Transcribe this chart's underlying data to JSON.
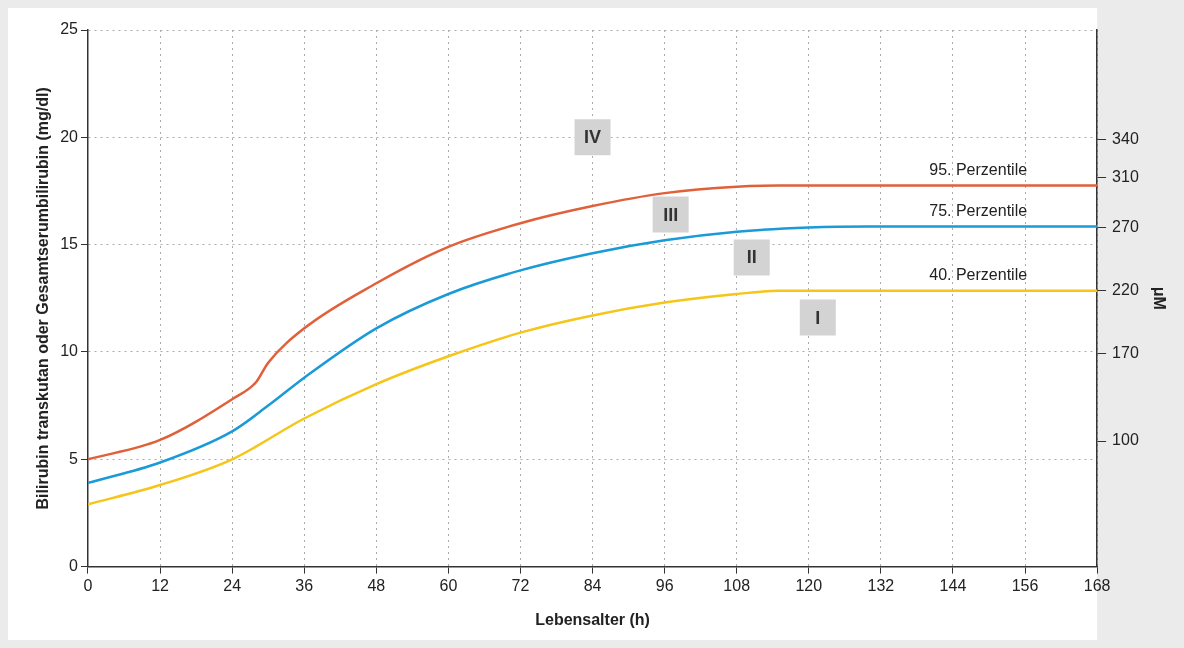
{
  "chart_data": {
    "type": "line",
    "xlabel": "Lebensalter (h)",
    "ylabel": "Bilirubin transkutan oder Gesamtserumbilirubin (mg/dl)",
    "y2label": "μM",
    "xlim": [
      0,
      168
    ],
    "xticks": [
      0,
      12,
      24,
      36,
      48,
      60,
      72,
      84,
      96,
      108,
      120,
      132,
      144,
      156,
      168
    ],
    "ylim": [
      0,
      25
    ],
    "yticks": [
      0,
      5,
      10,
      15,
      20,
      25
    ],
    "y2lim": [
      0,
      427.5
    ],
    "y2ticks": [
      100,
      170,
      220,
      270,
      310,
      340
    ],
    "grid": true,
    "legend": false,
    "marker": "none",
    "line_style": "solid",
    "series": [
      {
        "name": "95. Perzentile",
        "color": "#e0603a",
        "x": [
          0,
          12,
          24,
          28,
          30,
          36,
          48,
          60,
          72,
          84,
          96,
          108,
          115,
          168
        ],
        "values": [
          5.0,
          5.9,
          7.8,
          8.6,
          9.5,
          11.1,
          13.2,
          14.9,
          16.0,
          16.8,
          17.4,
          17.7,
          17.75,
          17.75
        ]
      },
      {
        "name": "75. Perzentile",
        "color": "#1a9ad6",
        "x": [
          0,
          12,
          24,
          30,
          36,
          48,
          60,
          72,
          84,
          96,
          108,
          120,
          130,
          168
        ],
        "values": [
          3.9,
          4.85,
          6.3,
          7.5,
          8.8,
          11.1,
          12.7,
          13.8,
          14.6,
          15.2,
          15.6,
          15.8,
          15.85,
          15.85
        ]
      },
      {
        "name": "40. Perzentile",
        "color": "#f5c518",
        "x": [
          0,
          12,
          24,
          36,
          48,
          60,
          72,
          84,
          96,
          108,
          115,
          168
        ],
        "values": [
          2.9,
          3.8,
          5.0,
          6.9,
          8.5,
          9.8,
          10.9,
          11.7,
          12.3,
          12.7,
          12.85,
          12.85
        ]
      }
    ],
    "annotations": [
      {
        "text": "IV",
        "x": 84,
        "y": 20
      },
      {
        "text": "III",
        "x": 97,
        "y": 16.4
      },
      {
        "text": "II",
        "x": 110.5,
        "y": 14.4
      },
      {
        "text": "I",
        "x": 121.5,
        "y": 11.6
      }
    ]
  }
}
